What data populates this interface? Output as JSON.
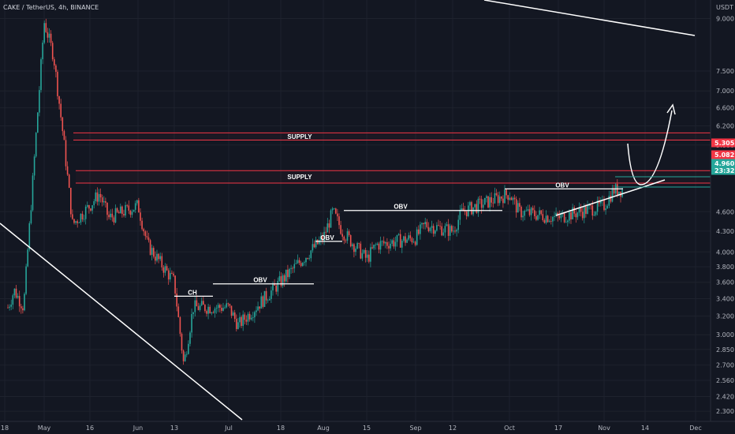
{
  "header": {
    "symbol_title": "CAKE / TetherUS, 4h, BINANCE",
    "currency_label": "USDT"
  },
  "colors": {
    "background": "#131722",
    "grid": "#1e222d",
    "up": "#26a69a",
    "down": "#ef5350",
    "zone_line": "#f23645",
    "annotation": "#ffffff",
    "axis_text": "#b2b5be"
  },
  "chart_data": {
    "type": "candlestick",
    "title": "CAKE / TetherUS, 4h, BINANCE",
    "xlabel": "",
    "ylabel": "USDT",
    "y_scale": "log",
    "ylim": [
      2.22,
      9.6
    ],
    "grid": true,
    "x_ticks": [
      "18",
      "May",
      "16",
      "Jun",
      "13",
      "Jul",
      "18",
      "Aug",
      "15",
      "Sep",
      "12",
      "Oct",
      "17",
      "Nov",
      "14",
      "Dec"
    ],
    "y_ticks": [
      9.0,
      7.5,
      7.0,
      6.6,
      6.2,
      5.8,
      4.6,
      4.3,
      4.0,
      3.8,
      3.6,
      3.4,
      3.2,
      3.0,
      2.85,
      2.7,
      2.56,
      2.42,
      2.3
    ],
    "y_tick_labels": [
      "9.000",
      "7.500",
      "7.000",
      "6.600",
      "6.200",
      "5.800",
      "4.600",
      "4.300",
      "4.000",
      "3.800",
      "3.600",
      "3.400",
      "3.200",
      "3.000",
      "2.850",
      "2.700",
      "2.560",
      "2.420",
      "2.300"
    ],
    "price_series": [
      {
        "x": "May",
        "y": 8.9
      },
      {
        "x": "May",
        "y": 7.9
      },
      {
        "x": "May",
        "y": 6.0
      },
      {
        "x": "May",
        "y": 4.4
      },
      {
        "x": "16",
        "y": 4.7
      },
      {
        "x": "16",
        "y": 4.9
      },
      {
        "x": "16",
        "y": 4.5
      },
      {
        "x": "Jun",
        "y": 4.7
      },
      {
        "x": "Jun",
        "y": 4.1
      },
      {
        "x": "13",
        "y": 3.6
      },
      {
        "x": "13",
        "y": 2.7
      },
      {
        "x": "13",
        "y": 3.3
      },
      {
        "x": "Jul",
        "y": 3.3
      },
      {
        "x": "Jul",
        "y": 3.1
      },
      {
        "x": "18",
        "y": 3.2
      },
      {
        "x": "18",
        "y": 3.5
      },
      {
        "x": "18",
        "y": 3.3
      },
      {
        "x": "Aug",
        "y": 4.2
      },
      {
        "x": "Aug",
        "y": 4.6
      },
      {
        "x": "Aug",
        "y": 4.3
      },
      {
        "x": "15",
        "y": 3.9
      },
      {
        "x": "15",
        "y": 4.1
      },
      {
        "x": "Sep",
        "y": 4.2
      },
      {
        "x": "Sep",
        "y": 4.4
      },
      {
        "x": "12",
        "y": 4.3
      },
      {
        "x": "12",
        "y": 4.6
      },
      {
        "x": "Oct",
        "y": 4.9
      },
      {
        "x": "Oct",
        "y": 4.6
      },
      {
        "x": "17",
        "y": 4.5
      },
      {
        "x": "17",
        "y": 4.55
      },
      {
        "x": "Nov",
        "y": 4.7
      },
      {
        "x": "Nov",
        "y": 4.96
      }
    ],
    "price_tags": [
      {
        "label": "5.305",
        "value": 5.305,
        "color": "#f23645"
      },
      {
        "label": "5.082",
        "value": 5.082,
        "color": "#f23645"
      },
      {
        "label": "4.960",
        "value": 4.96,
        "color": "#26a69a"
      },
      {
        "label": "23:32",
        "value": 4.86,
        "color": "#26a69a"
      }
    ],
    "zones": [
      {
        "label": "SUPPLY",
        "low": 5.9,
        "high": 6.05
      },
      {
        "label": "SUPPLY",
        "low": 5.082,
        "high": 5.305
      }
    ],
    "annotations": [
      {
        "label": "CH",
        "y": 3.43
      },
      {
        "label": "OBV",
        "y": 3.58
      },
      {
        "label": "OBV",
        "y": 4.15
      },
      {
        "label": "OBV",
        "y": 4.62
      },
      {
        "label": "OBV",
        "y": 4.98
      }
    ]
  }
}
